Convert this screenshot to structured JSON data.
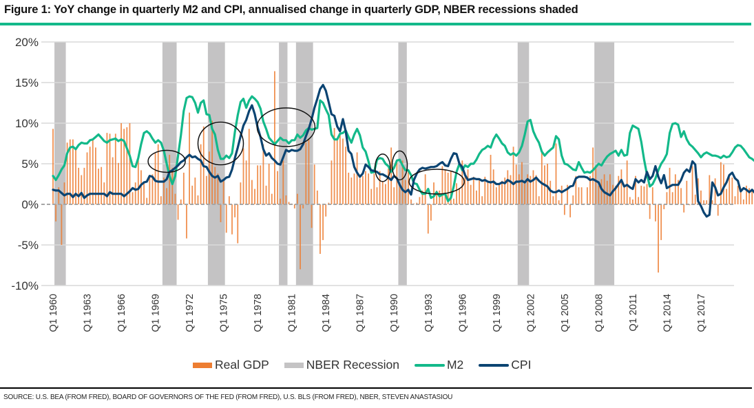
{
  "figure": {
    "title": "Figure 1: YoY change in quarterly M2 and CPI, annualised change in quarterly GDP, NBER recessions shaded",
    "source": "SOURCE: U.S. BEA (FROM FRED), BOARD OF GOVERNORS OF THE FED (FROM FRED), U.S. BLS (FROM FRED), NBER, STEVEN ANASTASIOU",
    "accent_color": "#13b98a"
  },
  "legend": [
    {
      "label": "Real GDP",
      "type": "box",
      "color": "#ed7d31"
    },
    {
      "label": "NBER Recession",
      "type": "box",
      "color": "#c4c3c4"
    },
    {
      "label": "M2",
      "type": "line",
      "color": "#13b98a"
    },
    {
      "label": "CPI",
      "type": "line",
      "color": "#0b4472"
    }
  ],
  "chart_data": {
    "type": "line",
    "title": "YoY change in quarterly M2 and CPI, annualised change in quarterly GDP, NBER recessions shaded",
    "xlabel": "",
    "ylabel": "",
    "ylim": [
      -10,
      20
    ],
    "yticks": [
      -10,
      -5,
      0,
      5,
      10,
      15,
      20
    ],
    "ytick_labels": [
      "-10%",
      "-5%",
      "0%",
      "5%",
      "10%",
      "15%",
      "20%"
    ],
    "x_start": "Q1 1960",
    "x_end": "Q4 2019",
    "xtick_labels": [
      "Q1 1960",
      "Q1 1963",
      "Q1 1966",
      "Q1 1969",
      "Q1 1972",
      "Q1 1975",
      "Q1 1978",
      "Q1 1981",
      "Q1 1984",
      "Q1 1987",
      "Q1 1990",
      "Q1 1993",
      "Q1 1996",
      "Q1 1999",
      "Q1 2002",
      "Q1 2005",
      "Q1 2008",
      "Q1 2011",
      "Q1 2014",
      "Q1 2017"
    ],
    "grid": true,
    "legend_position": "bottom",
    "recessions": [
      {
        "start": "1960Q2",
        "end": "1961Q1"
      },
      {
        "start": "1969Q4",
        "end": "1970Q4"
      },
      {
        "start": "1973Q4",
        "end": "1975Q1"
      },
      {
        "start": "1980Q1",
        "end": "1980Q3"
      },
      {
        "start": "1981Q3",
        "end": "1982Q4"
      },
      {
        "start": "1990Q3",
        "end": "1991Q1"
      },
      {
        "start": "2001Q1",
        "end": "2001Q4"
      },
      {
        "start": "2007Q4",
        "end": "2009Q2"
      }
    ],
    "annotations": [
      {
        "type": "ellipse",
        "center": "1970Q1",
        "y": 5.3,
        "label": ""
      },
      {
        "type": "ellipse",
        "center": "1974Q4",
        "y": 7.5,
        "label": ""
      },
      {
        "type": "ellipse",
        "center": "1980Q3",
        "y": 9.5,
        "label": ""
      },
      {
        "type": "ellipse",
        "center": "1989Q1",
        "y": 4.5,
        "label": ""
      },
      {
        "type": "ellipse",
        "center": "1990Q3",
        "y": 4.8,
        "label": ""
      },
      {
        "type": "ellipse",
        "center": "1993Q4",
        "y": 2.8,
        "label": ""
      }
    ],
    "series": [
      {
        "name": "M2",
        "kind": "line",
        "color": "#13b98a",
        "values": [
          3.5,
          3.0,
          3.6,
          4.3,
          4.8,
          6.3,
          7.0,
          7.1,
          6.8,
          7.3,
          7.6,
          7.5,
          7.5,
          7.9,
          8.0,
          8.3,
          8.6,
          8.2,
          7.8,
          7.6,
          7.9,
          8.0,
          8.1,
          7.8,
          8.0,
          7.8,
          6.9,
          6.0,
          4.7,
          4.6,
          5.7,
          7.4,
          8.8,
          9.0,
          8.7,
          8.1,
          7.6,
          7.9,
          7.6,
          6.6,
          5.0,
          3.5,
          2.5,
          3.5,
          6.0,
          8.5,
          11.5,
          13.1,
          13.3,
          13.2,
          12.5,
          11.3,
          12.5,
          12.8,
          11.1,
          11.0,
          9.3,
          8.6,
          6.7,
          5.6,
          5.6,
          6.0,
          5.7,
          6.3,
          8.9,
          11.0,
          12.6,
          13.0,
          11.9,
          12.8,
          13.3,
          13.0,
          12.6,
          11.8,
          10.2,
          9.3,
          8.2,
          7.8,
          7.4,
          7.8,
          8.2,
          7.9,
          7.9,
          7.5,
          7.9,
          7.9,
          8.6,
          8.2,
          8.5,
          9.1,
          9.4,
          9.2,
          9.3,
          9.4,
          12.8,
          12.5,
          11.7,
          11.0,
          8.6,
          8.0,
          8.0,
          8.7,
          8.8,
          9.1,
          8.3,
          7.6,
          8.6,
          9.3,
          8.5,
          7.0,
          6.5,
          5.3,
          3.9,
          4.0,
          5.5,
          5.7,
          5.6,
          5.0,
          4.7,
          4.0,
          4.5,
          5.4,
          5.5,
          4.8,
          4.2,
          4.2,
          3.6,
          2.6,
          2.5,
          1.8,
          1.3,
          1.3,
          1.9,
          0.8,
          1.0,
          1.5,
          1.0,
          1.2,
          1.3,
          0.4,
          0.8,
          2.2,
          4.0,
          5.0,
          4.2,
          4.8,
          4.6,
          5.0,
          5.0,
          5.5,
          6.2,
          6.7,
          6.9,
          7.2,
          7.0,
          8.0,
          8.6,
          8.1,
          7.5,
          7.2,
          6.4,
          6.1,
          6.3,
          6.0,
          6.4,
          7.2,
          8.6,
          10.2,
          10.4,
          9.0,
          8.2,
          7.6,
          6.5,
          6.0,
          6.4,
          6.7,
          7.0,
          8.4,
          8.0,
          6.0,
          5.0,
          4.9,
          4.6,
          4.3,
          4.2,
          5.2,
          4.5,
          3.9,
          4.0,
          3.9,
          4.2,
          4.6,
          5.0,
          4.8,
          5.4,
          5.9,
          6.2,
          6.4,
          6.6,
          6.0,
          6.7,
          6.0,
          6.1,
          8.8,
          9.7,
          9.5,
          9.3,
          7.7,
          5.5,
          3.7,
          2.2,
          2.5,
          3.2,
          4.2,
          5.0,
          5.5,
          6.2,
          8.8,
          9.9,
          10.0,
          9.8,
          8.3,
          9.0,
          8.0,
          7.4,
          7.1,
          6.7,
          6.3,
          5.8,
          6.2,
          6.4,
          6.2,
          6.0,
          6.0,
          5.9,
          5.7,
          6.0,
          5.8,
          5.9,
          6.4,
          7.0,
          7.3,
          7.2,
          6.8,
          6.3,
          5.8,
          5.6,
          5.3,
          4.9,
          4.4,
          3.9,
          4.0,
          3.8,
          3.6,
          3.7,
          4.0,
          4.8,
          5.8,
          6.6
        ]
      },
      {
        "name": "CPI",
        "kind": "line",
        "color": "#0b4472",
        "values": [
          1.8,
          1.7,
          1.7,
          1.4,
          1.1,
          1.3,
          1.3,
          0.9,
          1.3,
          1.0,
          1.4,
          0.8,
          1.1,
          1.3,
          1.3,
          1.3,
          1.3,
          1.3,
          1.3,
          1.0,
          1.5,
          1.3,
          1.3,
          1.3,
          1.3,
          1.0,
          1.3,
          1.6,
          2.0,
          1.8,
          1.9,
          2.4,
          2.7,
          2.8,
          3.5,
          3.4,
          2.9,
          2.8,
          2.8,
          2.8,
          3.1,
          4.0,
          4.2,
          4.5,
          4.8,
          5.2,
          5.4,
          5.8,
          6.1,
          5.8,
          5.9,
          5.6,
          5.4,
          4.7,
          4.6,
          4.0,
          3.5,
          3.3,
          3.5,
          2.8,
          3.0,
          3.3,
          3.4,
          4.3,
          5.7,
          7.0,
          8.4,
          9.7,
          10.4,
          11.5,
          12.2,
          11.1,
          9.5,
          8.3,
          6.8,
          6.0,
          6.3,
          5.7,
          5.4,
          5.0,
          4.9,
          5.8,
          6.7,
          6.5,
          6.7,
          6.6,
          6.6,
          6.8,
          7.4,
          8.4,
          9.3,
          10.5,
          11.9,
          13.0,
          14.2,
          14.7,
          14.0,
          12.6,
          11.1,
          10.9,
          9.6,
          9.0,
          10.5,
          9.0,
          6.6,
          6.2,
          4.6,
          3.9,
          3.4,
          3.8,
          4.9,
          4.6,
          4.2,
          4.1,
          4.0,
          3.7,
          3.7,
          3.5,
          3.3,
          3.0,
          3.5,
          3.2,
          2.4,
          1.8,
          1.5,
          1.8,
          1.2,
          3.0,
          3.8,
          4.3,
          4.5,
          4.4,
          4.5,
          4.6,
          4.6,
          4.7,
          5.0,
          5.2,
          4.8,
          4.7,
          5.6,
          6.3,
          6.2,
          5.0,
          4.6,
          3.6,
          3.0,
          3.1,
          3.2,
          3.1,
          3.1,
          2.9,
          3.0,
          2.8,
          2.7,
          2.8,
          2.5,
          2.5,
          2.7,
          2.6,
          3.0,
          2.8,
          2.5,
          2.8,
          2.8,
          2.9,
          2.7,
          3.1,
          2.8,
          3.0,
          3.3,
          2.9,
          2.6,
          2.4,
          2.2,
          1.7,
          1.5,
          1.5,
          1.7,
          1.5,
          1.7,
          1.9,
          2.2,
          2.3,
          3.2,
          3.4,
          3.4,
          3.4,
          3.3,
          3.0,
          3.1,
          2.9,
          2.7,
          1.9,
          1.5,
          1.3,
          1.1,
          1.6,
          2.0,
          2.5,
          3.0,
          2.2,
          2.4,
          2.1,
          1.9,
          3.1,
          2.7,
          3.0,
          2.7,
          4.0,
          3.1,
          3.5,
          4.7,
          3.4,
          2.6,
          3.6,
          2.0,
          2.2,
          2.4,
          2.4,
          2.4,
          3.0,
          3.9,
          4.3,
          4.0,
          5.3,
          4.9,
          0.4,
          -0.2,
          -1.0,
          -1.5,
          -1.3,
          2.7,
          2.1,
          1.1,
          1.3,
          2.1,
          2.7,
          3.6,
          3.9,
          3.2,
          2.9,
          1.6,
          2.0,
          1.8,
          1.5,
          1.8,
          1.4,
          1.6,
          1.6,
          1.9,
          1.1,
          0.0,
          -0.1,
          0.1,
          0.0,
          0.7,
          1.0,
          1.1,
          1.5,
          2.0,
          2.5,
          2.1,
          2.1,
          2.7,
          2.2,
          1.9,
          1.7,
          1.7,
          1.6,
          1.8,
          2.3
        ]
      },
      {
        "name": "Real GDP",
        "kind": "bar",
        "color": "#ed7d31",
        "values": [
          9.3,
          -2.1,
          2.1,
          -5.0,
          2.7,
          7.6,
          8.0,
          8.0,
          6.9,
          4.5,
          3.6,
          4.5,
          6.4,
          7.1,
          8.0,
          7.0,
          4.4,
          4.6,
          2.7,
          8.8,
          8.7,
          5.8,
          8.7,
          5.1,
          10.0,
          9.3,
          9.5,
          10.0,
          1.5,
          2.7,
          5.6,
          4.2,
          2.6,
          0.8,
          3.6,
          3.7,
          6.3,
          7.4,
          1.0,
          3.3,
          2.0,
          6.1,
          4.5,
          1.3,
          -1.9,
          0.6,
          3.9,
          -4.2,
          11.3,
          2.3,
          3.3,
          1.1,
          7.4,
          9.6,
          3.5,
          6.5,
          10.3,
          4.6,
          3.8,
          -2.2,
          3.1,
          -3.5,
          1.0,
          -3.7,
          -1.6,
          -4.8,
          2.7,
          6.9,
          5.4,
          9.3,
          3.0,
          1.9,
          4.8,
          4.8,
          7.4,
          2.3,
          5.0,
          1.3,
          16.4,
          4.1,
          0.7,
          5.4,
          1.1,
          0.3,
          0.1,
          -0.5,
          1.3,
          -8.0,
          -0.5,
          7.6,
          8.1,
          -2.9,
          4.9,
          1.7,
          -6.1,
          -4.4,
          -1.5,
          0.2,
          5.4,
          9.4,
          8.1,
          8.6,
          8.1,
          7.1,
          3.9,
          3.3,
          3.8,
          6.4,
          3.2,
          3.5,
          4.1,
          3.8,
          1.9,
          3.8,
          2.1,
          4.1,
          2.8,
          2.5,
          4.4,
          7.0,
          2.1,
          5.4,
          2.3,
          5.4,
          3.0,
          4.1,
          0.6,
          0.1,
          0.2,
          0.9,
          1.7,
          3.7,
          -3.6,
          -2.0,
          2.7,
          1.7,
          1.7,
          4.7,
          4.3,
          3.9,
          4.1,
          0.7,
          2.6,
          2.0,
          5.4,
          3.9,
          4.3,
          2.4,
          3.4,
          1.7,
          3.0,
          1.0,
          3.4,
          2.7,
          6.1,
          4.3,
          2.1,
          2.4,
          2.9,
          3.3,
          4.2,
          3.6,
          7.1,
          4.9,
          3.7,
          5.2,
          2.9,
          3.7,
          3.5,
          4.2,
          3.6,
          1.0,
          6.7,
          4.8,
          5.0,
          2.9,
          1.0,
          7.5,
          0.5,
          2.3,
          -1.3,
          2.4,
          -1.6,
          1.1,
          3.5,
          2.1,
          2.1,
          0.1,
          2.1,
          3.5,
          7.0,
          4.7,
          2.3,
          3.1,
          3.7,
          2.9,
          3.7,
          2.4,
          2.3,
          3.5,
          4.3,
          2.1,
          5.4,
          0.9,
          0.6,
          3.5,
          0.9,
          2.3,
          2.2,
          2.5,
          -1.8,
          2.1,
          -2.1,
          -8.4,
          -4.4,
          -0.6,
          1.5,
          4.5,
          1.5,
          3.7,
          3.0,
          2.0,
          -1.0,
          2.9,
          -0.1,
          4.7,
          1.2,
          3.2,
          1.7,
          0.5,
          0.5,
          3.6,
          0.5,
          3.2,
          -1.4,
          5.2,
          4.9,
          1.9,
          3.3,
          3.3,
          1.0,
          2.3,
          2.0,
          0.6,
          2.3,
          2.0,
          1.9,
          3.0,
          2.8,
          2.9,
          1.1,
          3.1,
          2.7,
          2.0,
          2.1,
          3.1,
          2.6
        ]
      }
    ]
  }
}
